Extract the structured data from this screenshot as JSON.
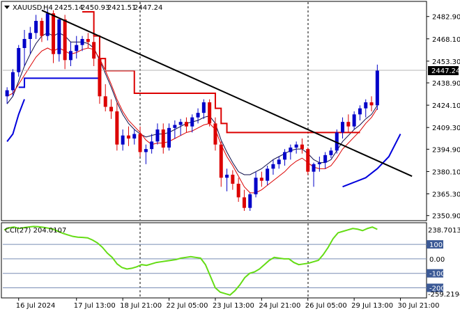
{
  "chart_data": [
    {
      "type": "candlestick",
      "symbol": "XAUUSD",
      "timeframe": "H4",
      "ohlc_readout": [
        "2425.14",
        "2450.93",
        "2421.51",
        "2447.24"
      ],
      "last_price_label": "2447.24",
      "last_price": 2447.24,
      "ylim": [
        2348,
        2492
      ],
      "y_ticks": [
        2482.9,
        2468.1,
        2453.3,
        2438.9,
        2424.1,
        2409.3,
        2394.9,
        2380.1,
        2365.3,
        2350.9
      ],
      "y_tick_labels": [
        "2482.90",
        "2468.10",
        "2453.30",
        "2438.90",
        "2424.10",
        "2409.30",
        "2394.90",
        "2380.10",
        "2365.30",
        "2350.90"
      ],
      "x_tick_labels": [
        {
          "label": "16 Jul 2024",
          "bar": 2
        },
        {
          "label": "17 Jul 13:00",
          "bar": 12
        },
        {
          "label": "18 Jul 21:00",
          "bar": 20
        },
        {
          "label": "22 Jul 05:00",
          "bar": 28
        },
        {
          "label": "23 Jul 13:00",
          "bar": 36
        },
        {
          "label": "24 Jul 21:00",
          "bar": 44
        },
        {
          "label": "26 Jul 05:00",
          "bar": 52
        },
        {
          "label": "29 Jul 13:00",
          "bar": 60
        },
        {
          "label": "30 Jul 21:00",
          "bar": 68
        }
      ],
      "period_separators": [
        23,
        52
      ],
      "colors": {
        "bull": "#0000c8",
        "bear": "#dc0000",
        "trendline": "#000000",
        "fast_ma": "#dc0000",
        "slow_ma": "#0a0a46",
        "stop_red": "#dc0000",
        "stop_blue": "#0000dc"
      },
      "candles": [
        [
          2430,
          2436,
          2425,
          2434
        ],
        [
          2434,
          2448,
          2430,
          2446
        ],
        [
          2446,
          2464,
          2443,
          2462
        ],
        [
          2462,
          2474,
          2450,
          2468
        ],
        [
          2468,
          2476,
          2458,
          2472
        ],
        [
          2472,
          2484,
          2468,
          2480
        ],
        [
          2480,
          2482,
          2466,
          2470
        ],
        [
          2470,
          2488,
          2467,
          2485
        ],
        [
          2485,
          2487,
          2452,
          2458
        ],
        [
          2458,
          2482,
          2453,
          2481
        ],
        [
          2481,
          2484,
          2448,
          2454
        ],
        [
          2454,
          2466,
          2450,
          2460
        ],
        [
          2460,
          2470,
          2455,
          2464
        ],
        [
          2464,
          2470,
          2460,
          2468
        ],
        [
          2468,
          2472,
          2462,
          2466
        ],
        [
          2466,
          2470,
          2450,
          2455
        ],
        [
          2455,
          2458,
          2425,
          2430
        ],
        [
          2430,
          2438,
          2420,
          2423
        ],
        [
          2423,
          2428,
          2415,
          2420
        ],
        [
          2420,
          2426,
          2394,
          2398
        ],
        [
          2398,
          2408,
          2394,
          2404
        ],
        [
          2404,
          2410,
          2397,
          2402
        ],
        [
          2402,
          2408,
          2398,
          2405
        ],
        [
          2405,
          2410,
          2390,
          2393
        ],
        [
          2393,
          2398,
          2385,
          2395
        ],
        [
          2395,
          2405,
          2392,
          2400
        ],
        [
          2400,
          2412,
          2398,
          2408
        ],
        [
          2408,
          2412,
          2392,
          2396
        ],
        [
          2396,
          2412,
          2394,
          2409
        ],
        [
          2409,
          2414,
          2402,
          2411
        ],
        [
          2411,
          2415,
          2404,
          2413
        ],
        [
          2413,
          2416,
          2406,
          2410
        ],
        [
          2410,
          2418,
          2406,
          2416
        ],
        [
          2416,
          2422,
          2412,
          2419
        ],
        [
          2419,
          2428,
          2415,
          2426
        ],
        [
          2426,
          2428,
          2410,
          2412
        ],
        [
          2412,
          2416,
          2394,
          2398
        ],
        [
          2398,
          2400,
          2370,
          2376
        ],
        [
          2376,
          2382,
          2367,
          2378
        ],
        [
          2378,
          2381,
          2368,
          2372
        ],
        [
          2372,
          2376,
          2360,
          2363
        ],
        [
          2363,
          2368,
          2354,
          2356
        ],
        [
          2356,
          2366,
          2354,
          2365
        ],
        [
          2365,
          2380,
          2363,
          2376
        ],
        [
          2376,
          2380,
          2370,
          2374
        ],
        [
          2374,
          2384,
          2371,
          2382
        ],
        [
          2382,
          2388,
          2378,
          2385
        ],
        [
          2385,
          2390,
          2382,
          2388
        ],
        [
          2388,
          2395,
          2384,
          2393
        ],
        [
          2393,
          2398,
          2388,
          2396
        ],
        [
          2396,
          2400,
          2392,
          2398
        ],
        [
          2398,
          2402,
          2392,
          2395
        ],
        [
          2395,
          2396,
          2378,
          2380
        ],
        [
          2380,
          2386,
          2370,
          2385
        ],
        [
          2385,
          2390,
          2380,
          2386
        ],
        [
          2386,
          2393,
          2382,
          2391
        ],
        [
          2391,
          2396,
          2389,
          2394
        ],
        [
          2394,
          2408,
          2392,
          2406
        ],
        [
          2406,
          2416,
          2402,
          2413
        ],
        [
          2413,
          2418,
          2406,
          2410
        ],
        [
          2410,
          2420,
          2408,
          2418
        ],
        [
          2418,
          2424,
          2414,
          2422
        ],
        [
          2422,
          2428,
          2416,
          2426
        ],
        [
          2426,
          2430,
          2420,
          2424
        ],
        [
          2424,
          2451,
          2421,
          2447
        ]
      ],
      "trendline": {
        "from": {
          "bar": 6,
          "price": 2487
        },
        "to": {
          "bar": 70,
          "price": 2377
        }
      },
      "fast_ma": [
        2430,
        2432,
        2438,
        2444,
        2450,
        2456,
        2460,
        2462,
        2460,
        2462,
        2460,
        2458,
        2459,
        2461,
        2462,
        2461,
        2455,
        2447,
        2438,
        2428,
        2420,
        2414,
        2410,
        2406,
        2401,
        2398,
        2399,
        2399,
        2400,
        2402,
        2404,
        2406,
        2407,
        2409,
        2411,
        2412,
        2408,
        2398,
        2390,
        2384,
        2377,
        2370,
        2366,
        2366,
        2368,
        2371,
        2374,
        2377,
        2380,
        2384,
        2387,
        2389,
        2386,
        2383,
        2382,
        2382,
        2384,
        2389,
        2395,
        2399,
        2403,
        2407,
        2412,
        2416,
        2422
      ],
      "slow_ma": [
        2425,
        2430,
        2440,
        2450,
        2458,
        2465,
        2470,
        2472,
        2470,
        2472,
        2470,
        2466,
        2466,
        2466,
        2465,
        2462,
        2454,
        2445,
        2436,
        2426,
        2418,
        2412,
        2408,
        2405,
        2403,
        2404,
        2405,
        2405,
        2406,
        2408,
        2410,
        2412,
        2413,
        2414,
        2416,
        2417,
        2412,
        2401,
        2393,
        2386,
        2380,
        2378,
        2378,
        2380,
        2382,
        2385,
        2388,
        2390,
        2392,
        2394,
        2395,
        2395,
        2392,
        2388,
        2386,
        2386,
        2388,
        2394,
        2400,
        2404,
        2408,
        2411,
        2415,
        2418,
        2424
      ],
      "stop_line_red": [
        [
          0,
          null
        ],
        [
          2,
          null
        ],
        [
          13,
          2486
        ],
        [
          14,
          2486
        ],
        [
          15,
          2470
        ],
        [
          16,
          2455
        ],
        [
          17,
          2447
        ],
        [
          20,
          2447
        ],
        [
          21,
          2447
        ],
        [
          22,
          2432
        ],
        [
          34,
          2432
        ],
        [
          35,
          2432
        ],
        [
          36,
          2422
        ],
        [
          37,
          2412
        ],
        [
          38,
          2406
        ],
        [
          52,
          2406
        ]
      ],
      "stop_line_blue": [
        [
          2,
          2436
        ],
        [
          3,
          2442
        ],
        [
          4,
          2442
        ],
        [
          5,
          2442
        ],
        [
          6,
          2442
        ],
        [
          7,
          2442
        ],
        [
          8,
          2442
        ],
        [
          11,
          2442
        ],
        [
          12,
          2442
        ],
        [
          13,
          2442
        ],
        [
          14,
          2442
        ],
        [
          15,
          2442
        ],
        [
          16,
          2442
        ]
      ],
      "stop_line_blue_low": [
        [
          0,
          2400
        ],
        [
          1,
          2405
        ],
        [
          2,
          2418
        ],
        [
          3,
          2428
        ]
      ],
      "stop_line_blue_end": [
        [
          58,
          2370
        ],
        [
          60,
          2373
        ],
        [
          62,
          2376
        ],
        [
          64,
          2382
        ],
        [
          66,
          2390
        ],
        [
          68,
          2405
        ]
      ]
    },
    {
      "type": "line",
      "indicator_label": "CCI(27) 204.0107",
      "max_label": "238.7013",
      "min_label": "-259.2194",
      "ylim": [
        -265,
        240
      ],
      "levels": [
        100,
        0,
        -100,
        -200
      ],
      "level_labels": [
        "100",
        "0.00",
        "-100",
        "-200"
      ],
      "color": "#64dc14",
      "values": [
        200,
        215,
        220,
        210,
        216,
        220,
        224,
        222,
        218,
        212,
        205,
        190,
        176,
        165,
        155,
        150,
        148,
        145,
        130,
        110,
        80,
        40,
        10,
        -35,
        -60,
        -70,
        -65,
        -55,
        -40,
        -45,
        -35,
        -25,
        -20,
        -15,
        -10,
        -5,
        5,
        10,
        15,
        10,
        5,
        -40,
        -120,
        -200,
        -230,
        -240,
        -250,
        -220,
        -180,
        -130,
        -100,
        -90,
        -70,
        -40,
        -10,
        10,
        5,
        0,
        0,
        -25,
        -40,
        -35,
        -30,
        -20,
        -10,
        30,
        80,
        140,
        180,
        190,
        200,
        210,
        205,
        195,
        210,
        220,
        204
      ]
    }
  ]
}
